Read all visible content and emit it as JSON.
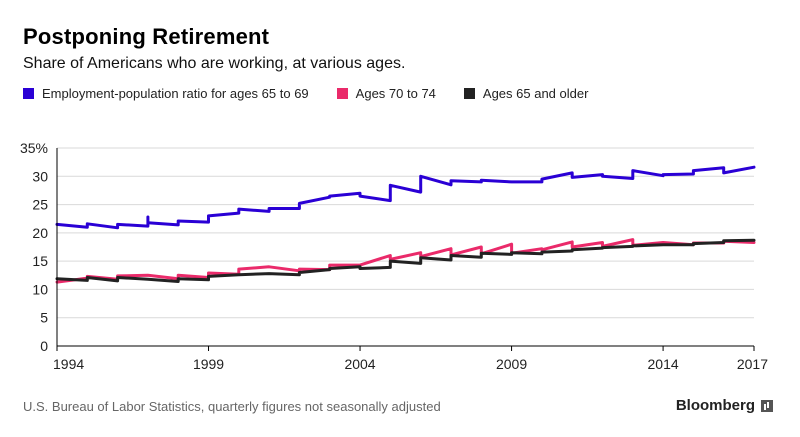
{
  "colors": {
    "series1": "#2a00d5",
    "series2": "#ea2a6a",
    "series3": "#222222",
    "grid": "#d9d9d9"
  },
  "chart_data": {
    "type": "line",
    "title": "Postponing Retirement",
    "subtitle": "Share of Americans who are working, at various ages.",
    "xlabel": "",
    "ylabel": "",
    "xlim": [
      1994,
      2017
    ],
    "ylim": [
      0,
      35
    ],
    "x_ticks": [
      1994,
      1999,
      2004,
      2009,
      2014,
      2017
    ],
    "y_tick_labels": [
      "0",
      "5",
      "10",
      "15",
      "20",
      "25",
      "30",
      "35%"
    ],
    "y_ticks": [
      0,
      5,
      10,
      15,
      20,
      25,
      30,
      35
    ],
    "legend_placement": "top",
    "grid": true,
    "series": [
      {
        "name": "Employment-population ratio for ages 65 to 69",
        "x": [
          1994,
          1995,
          1995,
          1996,
          1996,
          1997,
          1997,
          1997,
          1998,
          1998,
          1999,
          1999,
          2000,
          2000,
          2001,
          2001,
          2002,
          2002,
          2003,
          2003,
          2004,
          2004,
          2005,
          2005,
          2006,
          2006,
          2007,
          2007,
          2008,
          2008,
          2009,
          2009,
          2010,
          2010,
          2011,
          2011,
          2012,
          2012,
          2013,
          2013,
          2014,
          2014,
          2015,
          2015,
          2016,
          2016,
          2017
        ],
        "values": [
          21.5,
          21.0,
          21.6,
          20.9,
          21.5,
          21.2,
          22.8,
          21.8,
          21.4,
          22.1,
          21.9,
          23.0,
          23.5,
          24.2,
          23.8,
          24.3,
          24.3,
          25.2,
          26.3,
          26.5,
          27.0,
          26.5,
          25.7,
          28.4,
          27.2,
          30.0,
          28.5,
          29.2,
          29.0,
          29.3,
          29.0,
          29.0,
          29.0,
          29.5,
          30.6,
          29.8,
          30.3,
          30.0,
          29.6,
          31.0,
          30.1,
          30.3,
          30.4,
          31.0,
          31.5,
          30.6,
          31.6
        ]
      },
      {
        "name": "Ages 70 to 74",
        "x": [
          1994,
          1995,
          1995,
          1996,
          1996,
          1997,
          1998,
          1998,
          1999,
          1999,
          2000,
          2000,
          2001,
          2002,
          2002,
          2003,
          2003,
          2004,
          2005,
          2005,
          2006,
          2006,
          2007,
          2007,
          2008,
          2008,
          2009,
          2009,
          2010,
          2010,
          2011,
          2011,
          2012,
          2012,
          2013,
          2013,
          2014,
          2015,
          2015,
          2016,
          2016,
          2017
        ],
        "values": [
          11.3,
          12.0,
          12.3,
          11.8,
          12.4,
          12.5,
          11.9,
          12.5,
          12.1,
          12.9,
          12.7,
          13.6,
          14.0,
          13.3,
          13.6,
          13.5,
          14.3,
          14.3,
          16.0,
          15.3,
          16.5,
          15.8,
          17.2,
          16.1,
          17.5,
          16.3,
          18.0,
          16.4,
          17.2,
          17.0,
          18.4,
          17.5,
          18.3,
          17.6,
          18.8,
          17.8,
          18.3,
          17.9,
          18.2,
          18.2,
          18.5,
          18.3
        ]
      },
      {
        "name": "Ages 65 and older",
        "x": [
          1994,
          1995,
          1995,
          1996,
          1996,
          1997,
          1998,
          1998,
          1999,
          1999,
          2000,
          2001,
          2002,
          2002,
          2003,
          2003,
          2004,
          2004,
          2005,
          2005,
          2006,
          2006,
          2007,
          2007,
          2008,
          2008,
          2009,
          2009,
          2010,
          2010,
          2011,
          2011,
          2012,
          2012,
          2013,
          2013,
          2014,
          2015,
          2015,
          2016,
          2016,
          2017
        ],
        "values": [
          11.9,
          11.6,
          12.1,
          11.5,
          12.1,
          11.8,
          11.4,
          11.9,
          11.7,
          12.3,
          12.6,
          12.8,
          12.6,
          13.0,
          13.5,
          13.7,
          14.0,
          13.7,
          13.9,
          15.0,
          14.6,
          15.6,
          15.2,
          16.0,
          15.7,
          16.4,
          16.2,
          16.5,
          16.3,
          16.6,
          16.8,
          17.0,
          17.3,
          17.4,
          17.6,
          17.7,
          17.9,
          17.9,
          18.1,
          18.3,
          18.6,
          18.7
        ]
      }
    ]
  },
  "footer": {
    "source": "U.S. Bureau of Labor Statistics, quarterly figures not seasonally adjusted",
    "brand": "Bloomberg"
  }
}
